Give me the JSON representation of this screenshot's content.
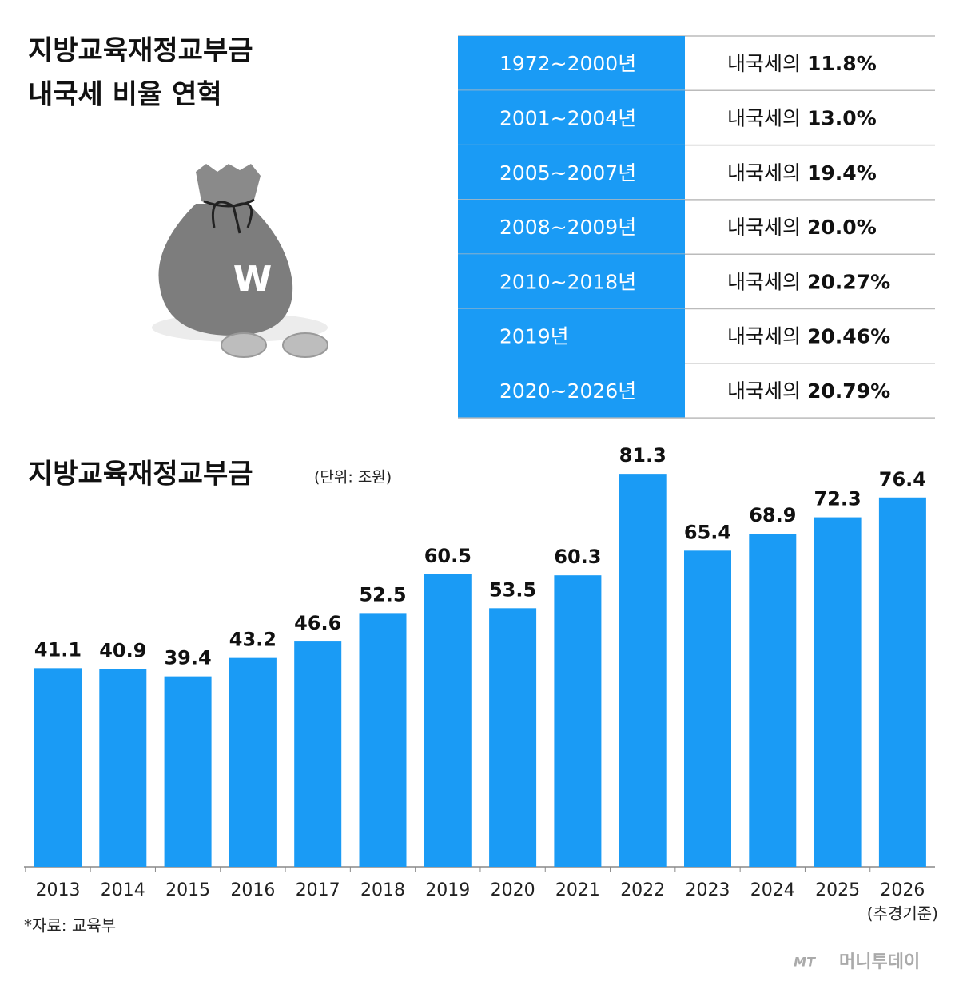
{
  "header": {
    "title_lines": [
      "지방교육재정교부금",
      "내국세 비율 연혁"
    ]
  },
  "table": {
    "rows": [
      [
        "1972~2000년",
        "내국세의",
        "11.8%"
      ],
      [
        "2001~2004년",
        "내국세의",
        "13.0%"
      ],
      [
        "2005~2007년",
        "내국세의",
        "19.4%"
      ],
      [
        "2008~2009년",
        "내국세의",
        "20.0%"
      ],
      [
        "2010~2018년",
        "내국세의",
        "20.27%"
      ],
      [
        "2019년",
        "내국세의",
        "20.46%"
      ],
      [
        "2020~2026년",
        "내국세의",
        "20.79%"
      ]
    ]
  },
  "chart_data": {
    "type": "bar",
    "title": "지방교육재정교부금",
    "unit": "(단위: 조원)",
    "categories": [
      "2013",
      "2014",
      "2015",
      "2016",
      "2017",
      "2018",
      "2019",
      "2020",
      "2021",
      "2022",
      "2023",
      "2024",
      "2025",
      "2026"
    ],
    "values": [
      41.1,
      40.9,
      39.4,
      43.2,
      46.6,
      52.5,
      60.5,
      53.5,
      60.3,
      81.3,
      65.4,
      68.9,
      72.3,
      76.4
    ],
    "color": "#1a9bf5",
    "note": "(추경기준)"
  },
  "source": "*자료: 교육부",
  "logo": {
    "mark": "MT",
    "name": "머니투데이"
  }
}
